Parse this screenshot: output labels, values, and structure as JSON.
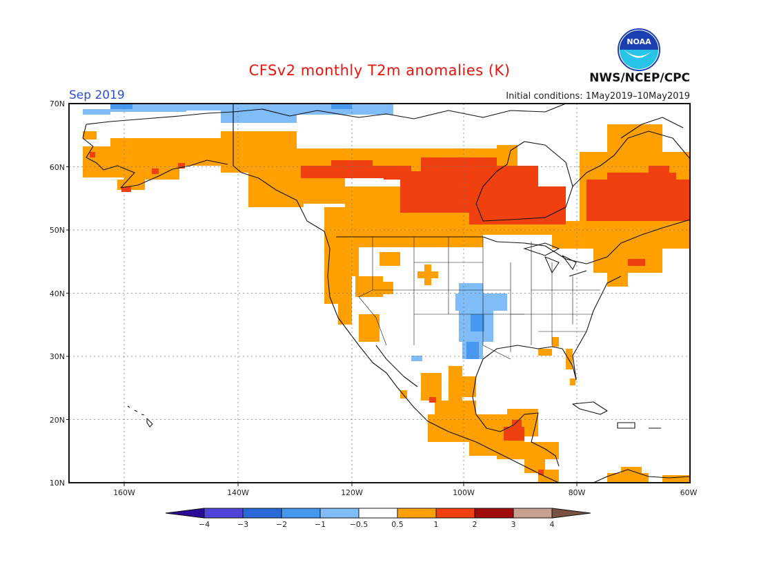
{
  "title": "CFSv2 monthly T2m anomalies (K)",
  "valid_month": "Sep 2019",
  "initial_conditions": "Initial conditions: 1May2019–10May2019",
  "agency": "NWS/NCEP/CPC",
  "logo_text": "NOAA",
  "map": {
    "lon_range": [
      -172,
      -60
    ],
    "lat_range": [
      10,
      70
    ],
    "lon_ticks": [
      "160W",
      "140W",
      "120W",
      "100W",
      "80W",
      "60W"
    ],
    "lat_ticks": [
      "70N",
      "60N",
      "50N",
      "40N",
      "30N",
      "20N",
      "10N"
    ],
    "colors": {
      "warm_1": "#ffa000",
      "warm_2": "#f04010",
      "cool_1": "#80bcf8",
      "cool_2": "#4898f0",
      "land_line": "#111111"
    }
  },
  "colorbar": {
    "ticks": [
      "−4",
      "−3",
      "−2",
      "−1",
      "−0.5",
      "0.5",
      "1",
      "2",
      "3",
      "4"
    ],
    "colors": [
      "#2a0c96",
      "#4e44d8",
      "#2a6ad8",
      "#4898f0",
      "#80bcf8",
      "#ffffff",
      "#ffa000",
      "#f04010",
      "#a00c0c",
      "#c8a090",
      "#7a5040"
    ]
  }
}
